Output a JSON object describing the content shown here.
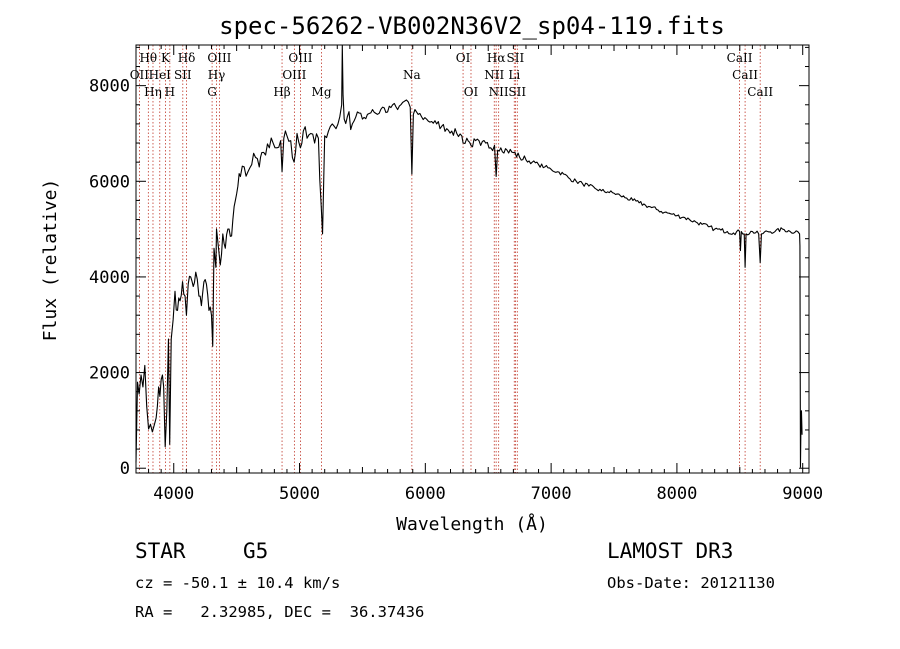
{
  "chart_data": {
    "type": "line",
    "title": "spec-56262-VB002N36V2_sp04-119.fits",
    "xlabel": "Wavelength (Å)",
    "ylabel": "Flux (relative)",
    "xlim": [
      3700,
      9050
    ],
    "ylim": [
      -100,
      8850
    ],
    "x_ticks": [
      4000,
      5000,
      6000,
      7000,
      8000,
      9000
    ],
    "y_ticks": [
      0,
      2000,
      4000,
      6000,
      8000
    ],
    "grid": false,
    "colors": {
      "spectrum": "#000000",
      "lines": "#c0392b",
      "axes": "#000000"
    },
    "spectrum": [
      [
        3700,
        120
      ],
      [
        3712,
        1800
      ],
      [
        3725,
        1550
      ],
      [
        3740,
        1950
      ],
      [
        3755,
        1700
      ],
      [
        3770,
        2150
      ],
      [
        3785,
        1300
      ],
      [
        3800,
        820
      ],
      [
        3815,
        920
      ],
      [
        3830,
        760
      ],
      [
        3845,
        900
      ],
      [
        3860,
        1050
      ],
      [
        3870,
        1300
      ],
      [
        3880,
        1700
      ],
      [
        3890,
        1500
      ],
      [
        3900,
        1850
      ],
      [
        3910,
        1950
      ],
      [
        3920,
        1700
      ],
      [
        3932,
        450
      ],
      [
        3945,
        1200
      ],
      [
        3958,
        2700
      ],
      [
        3968,
        500
      ],
      [
        3980,
        2700
      ],
      [
        3995,
        3100
      ],
      [
        4010,
        3700
      ],
      [
        4030,
        3300
      ],
      [
        4050,
        3500
      ],
      [
        4070,
        3900
      ],
      [
        4090,
        3600
      ],
      [
        4101,
        3200
      ],
      [
        4115,
        3850
      ],
      [
        4135,
        4000
      ],
      [
        4155,
        3800
      ],
      [
        4175,
        4100
      ],
      [
        4200,
        3600
      ],
      [
        4220,
        3400
      ],
      [
        4240,
        3900
      ],
      [
        4260,
        3850
      ],
      [
        4280,
        3300
      ],
      [
        4300,
        3200
      ],
      [
        4310,
        2550
      ],
      [
        4320,
        4600
      ],
      [
        4335,
        4200
      ],
      [
        4340,
        5000
      ],
      [
        4352,
        4700
      ],
      [
        4370,
        4250
      ],
      [
        4390,
        4900
      ],
      [
        4410,
        4600
      ],
      [
        4430,
        5000
      ],
      [
        4450,
        4850
      ],
      [
        4470,
        5200
      ],
      [
        4490,
        5600
      ],
      [
        4510,
        5900
      ],
      [
        4530,
        6100
      ],
      [
        4560,
        6300
      ],
      [
        4590,
        6200
      ],
      [
        4620,
        6350
      ],
      [
        4650,
        6500
      ],
      [
        4680,
        6300
      ],
      [
        4700,
        6600
      ],
      [
        4730,
        6550
      ],
      [
        4760,
        6700
      ],
      [
        4790,
        6800
      ],
      [
        4820,
        6700
      ],
      [
        4850,
        6850
      ],
      [
        4861,
        6200
      ],
      [
        4875,
        6900
      ],
      [
        4900,
        6950
      ],
      [
        4930,
        6850
      ],
      [
        4957,
        6400
      ],
      [
        4980,
        7000
      ],
      [
        5007,
        6700
      ],
      [
        5030,
        7050
      ],
      [
        5060,
        6900
      ],
      [
        5090,
        7000
      ],
      [
        5120,
        6800
      ],
      [
        5150,
        6900
      ],
      [
        5172,
        5500
      ],
      [
        5183,
        4900
      ],
      [
        5200,
        6950
      ],
      [
        5230,
        7050
      ],
      [
        5260,
        7200
      ],
      [
        5290,
        7100
      ],
      [
        5320,
        7350
      ],
      [
        5335,
        7600
      ],
      [
        5340,
        8850
      ],
      [
        5346,
        7800
      ],
      [
        5355,
        7300
      ],
      [
        5380,
        7350
      ],
      [
        5420,
        7200
      ],
      [
        5460,
        7450
      ],
      [
        5500,
        7300
      ],
      [
        5540,
        7400
      ],
      [
        5580,
        7500
      ],
      [
        5620,
        7400
      ],
      [
        5660,
        7550
      ],
      [
        5700,
        7450
      ],
      [
        5740,
        7600
      ],
      [
        5780,
        7500
      ],
      [
        5820,
        7650
      ],
      [
        5850,
        7700
      ],
      [
        5880,
        7550
      ],
      [
        5893,
        6150
      ],
      [
        5905,
        7400
      ],
      [
        5930,
        7450
      ],
      [
        5970,
        7350
      ],
      [
        6010,
        7300
      ],
      [
        6050,
        7250
      ],
      [
        6090,
        7200
      ],
      [
        6130,
        7150
      ],
      [
        6170,
        7100
      ],
      [
        6210,
        7050
      ],
      [
        6250,
        7000
      ],
      [
        6290,
        6950
      ],
      [
        6300,
        6800
      ],
      [
        6330,
        6900
      ],
      [
        6363,
        6750
      ],
      [
        6400,
        6850
      ],
      [
        6440,
        6750
      ],
      [
        6480,
        6800
      ],
      [
        6520,
        6700
      ],
      [
        6550,
        6750
      ],
      [
        6563,
        6100
      ],
      [
        6575,
        6650
      ],
      [
        6600,
        6700
      ],
      [
        6650,
        6650
      ],
      [
        6700,
        6600
      ],
      [
        6750,
        6500
      ],
      [
        6800,
        6450
      ],
      [
        6850,
        6400
      ],
      [
        6900,
        6350
      ],
      [
        6950,
        6300
      ],
      [
        7000,
        6250
      ],
      [
        7050,
        6200
      ],
      [
        7100,
        6150
      ],
      [
        7150,
        6050
      ],
      [
        7200,
        6000
      ],
      [
        7250,
        5950
      ],
      [
        7300,
        5900
      ],
      [
        7350,
        5850
      ],
      [
        7400,
        5800
      ],
      [
        7450,
        5780
      ],
      [
        7500,
        5750
      ],
      [
        7550,
        5700
      ],
      [
        7600,
        5650
      ],
      [
        7650,
        5600
      ],
      [
        7700,
        5550
      ],
      [
        7750,
        5500
      ],
      [
        7800,
        5450
      ],
      [
        7850,
        5400
      ],
      [
        7900,
        5350
      ],
      [
        7950,
        5320
      ],
      [
        8000,
        5280
      ],
      [
        8050,
        5250
      ],
      [
        8100,
        5200
      ],
      [
        8150,
        5150
      ],
      [
        8200,
        5100
      ],
      [
        8250,
        5050
      ],
      [
        8300,
        5000
      ],
      [
        8350,
        4980
      ],
      [
        8400,
        4950
      ],
      [
        8450,
        4920
      ],
      [
        8498,
        4950
      ],
      [
        8505,
        4550
      ],
      [
        8512,
        4950
      ],
      [
        8535,
        4900
      ],
      [
        8542,
        4200
      ],
      [
        8550,
        4900
      ],
      [
        8600,
        4950
      ],
      [
        8650,
        4900
      ],
      [
        8662,
        4300
      ],
      [
        8672,
        4900
      ],
      [
        8720,
        4950
      ],
      [
        8780,
        4950
      ],
      [
        8840,
        5000
      ],
      [
        8900,
        4950
      ],
      [
        8960,
        4950
      ],
      [
        8975,
        4900
      ],
      [
        8978,
        4650
      ],
      [
        8982,
        20
      ],
      [
        8986,
        900
      ],
      [
        8990,
        1200
      ],
      [
        8995,
        700
      ]
    ],
    "line_markers": [
      {
        "label": "Hθ",
        "x": 3798,
        "row": 1
      },
      {
        "label": "OII",
        "x": 3727,
        "row": 2
      },
      {
        "label": "Hη",
        "x": 3835,
        "row": 3
      },
      {
        "label": "K",
        "x": 3934,
        "row": 1
      },
      {
        "label": "HeI",
        "x": 3889,
        "row": 2
      },
      {
        "label": "H",
        "x": 3969,
        "row": 3
      },
      {
        "label": "Hδ",
        "x": 4102,
        "row": 1
      },
      {
        "label": "SII",
        "x": 4072,
        "row": 2
      },
      {
        "label": "OIII",
        "x": 4363,
        "row": 1
      },
      {
        "label": "Hγ",
        "x": 4340,
        "row": 2
      },
      {
        "label": "G",
        "x": 4305,
        "row": 3
      },
      {
        "label": "Hβ",
        "x": 4861,
        "row": 3
      },
      {
        "label": "OIII",
        "x": 5007,
        "row": 1
      },
      {
        "label": "OIII",
        "x": 4959,
        "row": 2
      },
      {
        "label": "Mg",
        "x": 5175,
        "row": 3
      },
      {
        "label": "Na",
        "x": 5893,
        "row": 2
      },
      {
        "label": "OI",
        "x": 6300,
        "row": 1
      },
      {
        "label": "OI",
        "x": 6363,
        "row": 3
      },
      {
        "label": "Hα",
        "x": 6563,
        "row": 1
      },
      {
        "label": "SII",
        "x": 6716,
        "row": 1
      },
      {
        "label": "NII",
        "x": 6548,
        "row": 2
      },
      {
        "label": "Li",
        "x": 6707,
        "row": 2
      },
      {
        "label": "NII",
        "x": 6583,
        "row": 3
      },
      {
        "label": "SII",
        "x": 6731,
        "row": 3
      },
      {
        "label": "CaII",
        "x": 8498,
        "row": 1
      },
      {
        "label": "CaII",
        "x": 8542,
        "row": 2
      },
      {
        "label": "CaII",
        "x": 8662,
        "row": 3
      }
    ]
  },
  "info": {
    "object_class": "STAR",
    "subclass": "G5",
    "survey": "LAMOST DR3",
    "cz": "cz = -50.1 ± 10.4 km/s",
    "obs_date": "Obs-Date: 20121130",
    "coords": "RA =   2.32985, DEC =  36.37436"
  }
}
